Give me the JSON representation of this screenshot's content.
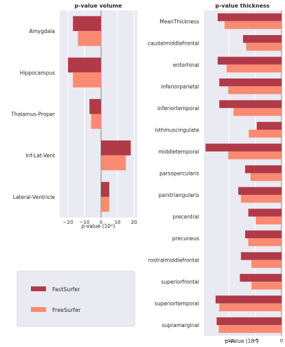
{
  "colors": {
    "fastsurfer": "#b03a48",
    "freesurfer": "#fa8a72",
    "panel_bg": "#eaeaf2",
    "grid": "#ffffff",
    "zero_line": "#7a7a7a"
  },
  "legend": {
    "items": [
      {
        "label": "FastSurfer",
        "color_key": "fastsurfer"
      },
      {
        "label": "FreeSurfer",
        "color_key": "freesurfer"
      }
    ]
  },
  "chart_data": [
    {
      "type": "bar",
      "orientation": "horizontal",
      "title": "p-value volume",
      "xlabel": "p-value (10ˣ)",
      "xlim": [
        -25,
        22
      ],
      "xticks": [
        -20,
        -10,
        0,
        10,
        20
      ],
      "grid": true,
      "categories": [
        "Amygdala",
        "Hippocampus",
        "Thalamus-Proper",
        "Inf-Lat-Vent",
        "Lateral-Ventricle"
      ],
      "series": [
        {
          "name": "FastSurfer",
          "values": [
            -17,
            -20,
            -7,
            18,
            5
          ]
        },
        {
          "name": "FreeSurfer",
          "values": [
            -14,
            -17,
            -6,
            15,
            5
          ]
        }
      ]
    },
    {
      "type": "bar",
      "orientation": "horizontal",
      "title": "p-value thickness",
      "xlabel": "p-value (10ˣ)",
      "xlim": [
        -14.7,
        0
      ],
      "xticks": [
        -10,
        -5,
        0
      ],
      "grid": true,
      "categories": [
        "MeanThickness",
        "caudalmiddlefrontal",
        "entorhinal",
        "inferiorparietal",
        "inferiortemporal",
        "isthmuscingulate",
        "middletemporal",
        "parsopercularis",
        "parstriangularis",
        "precentral",
        "precuneus",
        "rostralmiddlefrontal",
        "superiorfrontal",
        "superiortemporal",
        "supramarginal"
      ],
      "series": [
        {
          "name": "FastSurfer",
          "values": [
            -12.1,
            -7.3,
            -12.1,
            -11.8,
            -11.8,
            -4.7,
            -14.4,
            -6.9,
            -8.2,
            -6.3,
            -6.9,
            -7.7,
            -7.9,
            -12.5,
            -12.3
          ]
        },
        {
          "name": "FreeSurfer",
          "values": [
            -10.8,
            -6.7,
            -10.4,
            -10.1,
            -9.1,
            -6.2,
            -10.1,
            -5.9,
            -7.7,
            -4.9,
            -6.3,
            -5.7,
            -5.7,
            -11.8,
            -11.9
          ]
        }
      ]
    }
  ]
}
